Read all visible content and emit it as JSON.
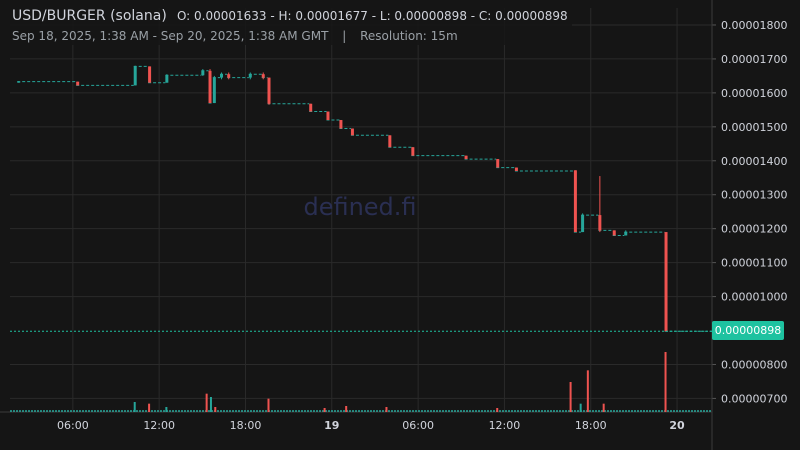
{
  "header": {
    "symbol": "USD/BURGER (solana)",
    "ohlc": "O: 0.00001633 - H: 0.00001677 - L: 0.00000898 - C: 0.00000898",
    "range": "Sep 18, 2025, 1:38 AM - Sep 20, 2025, 1:38 AM GMT",
    "separator": "|",
    "resolution": "Resolution: 15m"
  },
  "watermark": "defined.fi",
  "last_price_label": "0.00000898",
  "colors": {
    "up": "#26a69a",
    "down": "#ef5350",
    "accent": "#1ec2a0",
    "grid": "#2a2a2a",
    "background": "#151515"
  },
  "chart_data": {
    "type": "candlestick",
    "y_ticks": [
      "0.00001800",
      "0.00001700",
      "0.00001600",
      "0.00001500",
      "0.00001400",
      "0.00001300",
      "0.00001200",
      "0.00001100",
      "0.00001000",
      "0.00000800",
      "0.00000700"
    ],
    "y_tick_values": [
      1.8e-05,
      1.7e-05,
      1.6e-05,
      1.5e-05,
      1.4e-05,
      1.3e-05,
      1.2e-05,
      1.1e-05,
      1e-05,
      8e-06,
      7e-06
    ],
    "x_ticks": [
      "06:00",
      "12:00",
      "18:00",
      "19",
      "06:00",
      "12:00",
      "18:00",
      "20"
    ],
    "x_tick_hours": [
      4.37,
      10.37,
      16.37,
      22.37,
      28.37,
      34.37,
      40.37,
      46.37
    ],
    "bold_x_ticks": [
      "19",
      "20"
    ],
    "ylim": [
      6.6e-06,
      1.85e-05
    ],
    "xlim_hours": [
      0,
      48.8
    ],
    "last_price": 8.98e-06,
    "candles": [
      {
        "t": 0.5,
        "o": 1.633e-05,
        "h": 1.635e-05,
        "l": 1.63e-05,
        "c": 1.633e-05
      },
      {
        "t": 4.6,
        "o": 1.633e-05,
        "h": 1.633e-05,
        "l": 1.622e-05,
        "c": 1.622e-05
      },
      {
        "t": 8.6,
        "o": 1.622e-05,
        "h": 1.68e-05,
        "l": 1.622e-05,
        "c": 1.678e-05
      },
      {
        "t": 9.6,
        "o": 1.678e-05,
        "h": 1.678e-05,
        "l": 1.63e-05,
        "c": 1.63e-05
      },
      {
        "t": 10.8,
        "o": 1.63e-05,
        "h": 1.655e-05,
        "l": 1.63e-05,
        "c": 1.652e-05
      },
      {
        "t": 13.3,
        "o": 1.652e-05,
        "h": 1.67e-05,
        "l": 1.65e-05,
        "c": 1.665e-05
      },
      {
        "t": 13.8,
        "o": 1.665e-05,
        "h": 1.67e-05,
        "l": 1.57e-05,
        "c": 1.57e-05
      },
      {
        "t": 14.1,
        "o": 1.57e-05,
        "h": 1.65e-05,
        "l": 1.57e-05,
        "c": 1.645e-05
      },
      {
        "t": 14.6,
        "o": 1.645e-05,
        "h": 1.66e-05,
        "l": 1.64e-05,
        "c": 1.655e-05
      },
      {
        "t": 15.1,
        "o": 1.655e-05,
        "h": 1.66e-05,
        "l": 1.64e-05,
        "c": 1.645e-05
      },
      {
        "t": 16.6,
        "o": 1.645e-05,
        "h": 1.66e-05,
        "l": 1.64e-05,
        "c": 1.655e-05
      },
      {
        "t": 17.5,
        "o": 1.655e-05,
        "h": 1.66e-05,
        "l": 1.64e-05,
        "c": 1.645e-05
      },
      {
        "t": 17.9,
        "o": 1.645e-05,
        "h": 1.645e-05,
        "l": 1.565e-05,
        "c": 1.568e-05
      },
      {
        "t": 20.8,
        "o": 1.568e-05,
        "h": 1.568e-05,
        "l": 1.545e-05,
        "c": 1.545e-05
      },
      {
        "t": 22.0,
        "o": 1.545e-05,
        "h": 1.545e-05,
        "l": 1.52e-05,
        "c": 1.52e-05
      },
      {
        "t": 22.9,
        "o": 1.52e-05,
        "h": 1.52e-05,
        "l": 1.495e-05,
        "c": 1.495e-05
      },
      {
        "t": 23.7,
        "o": 1.495e-05,
        "h": 1.495e-05,
        "l": 1.475e-05,
        "c": 1.475e-05
      },
      {
        "t": 26.3,
        "o": 1.475e-05,
        "h": 1.475e-05,
        "l": 1.44e-05,
        "c": 1.44e-05
      },
      {
        "t": 27.9,
        "o": 1.44e-05,
        "h": 1.44e-05,
        "l": 1.415e-05,
        "c": 1.415e-05
      },
      {
        "t": 31.6,
        "o": 1.415e-05,
        "h": 1.415e-05,
        "l": 1.405e-05,
        "c": 1.405e-05
      },
      {
        "t": 33.8,
        "o": 1.405e-05,
        "h": 1.405e-05,
        "l": 1.38e-05,
        "c": 1.38e-05
      },
      {
        "t": 35.1,
        "o": 1.38e-05,
        "h": 1.38e-05,
        "l": 1.37e-05,
        "c": 1.37e-05
      },
      {
        "t": 39.2,
        "o": 1.372e-05,
        "h": 1.372e-05,
        "l": 1.19e-05,
        "c": 1.19e-05
      },
      {
        "t": 39.7,
        "o": 1.19e-05,
        "h": 1.245e-05,
        "l": 1.19e-05,
        "c": 1.24e-05
      },
      {
        "t": 40.9,
        "o": 1.24e-05,
        "h": 1.355e-05,
        "l": 1.19e-05,
        "c": 1.195e-05
      },
      {
        "t": 41.9,
        "o": 1.195e-05,
        "h": 1.195e-05,
        "l": 1.18e-05,
        "c": 1.18e-05
      },
      {
        "t": 42.7,
        "o": 1.18e-05,
        "h": 1.195e-05,
        "l": 1.18e-05,
        "c": 1.19e-05
      },
      {
        "t": 45.5,
        "o": 1.19e-05,
        "h": 1.19e-05,
        "l": 8.98e-06,
        "c": 8.98e-06
      }
    ],
    "volumes": [
      {
        "t": 8.6,
        "v": 0.3,
        "up": true
      },
      {
        "t": 9.6,
        "v": 0.25,
        "up": false
      },
      {
        "t": 10.8,
        "v": 0.15,
        "up": true
      },
      {
        "t": 13.6,
        "v": 0.55,
        "up": false
      },
      {
        "t": 13.9,
        "v": 0.45,
        "up": true
      },
      {
        "t": 14.2,
        "v": 0.15,
        "up": false
      },
      {
        "t": 17.9,
        "v": 0.4,
        "up": false
      },
      {
        "t": 21.8,
        "v": 0.12,
        "up": false
      },
      {
        "t": 23.3,
        "v": 0.18,
        "up": false
      },
      {
        "t": 26.1,
        "v": 0.15,
        "up": false
      },
      {
        "t": 33.8,
        "v": 0.12,
        "up": false
      },
      {
        "t": 38.9,
        "v": 0.9,
        "up": false
      },
      {
        "t": 39.6,
        "v": 0.25,
        "up": true
      },
      {
        "t": 40.1,
        "v": 1.25,
        "up": false
      },
      {
        "t": 41.2,
        "v": 0.25,
        "up": false
      },
      {
        "t": 45.5,
        "v": 1.8,
        "up": false
      }
    ]
  }
}
